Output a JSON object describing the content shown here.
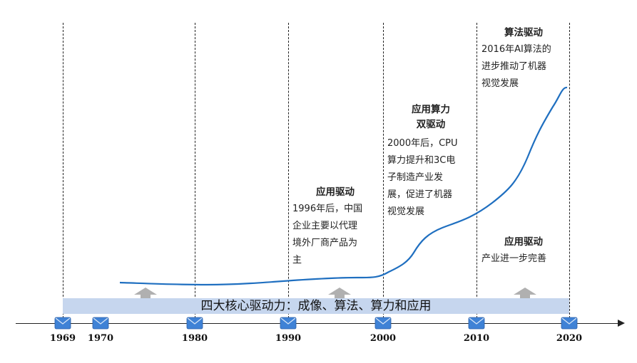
{
  "band_text": "四大核心驱动力：成像、算法、算力和应用",
  "years": [
    "1969",
    "1970",
    "1980",
    "1990",
    "2000",
    "2010",
    "2020"
  ],
  "annotations": {
    "app_1996": {
      "title": "应用驱动",
      "body": "1996年后，中国\n企业主要以代理\n境外厂商产品为\n主"
    },
    "app_compute_2000": {
      "title": "应用算力\n双驱动",
      "body": "2000年后，CPU\n算力提升和3C电\n子制造产业发\n展，促进了机器\n视觉发展"
    },
    "algo_2016": {
      "title": "算法驱动",
      "body": "2016年AI算法的\n进步推动了机器\n视觉发展"
    },
    "app_2010": {
      "title": "应用驱动",
      "body": "产业进一步完善"
    }
  },
  "colors": {
    "curve": "#1f6fc0",
    "band": "#c6d6ee",
    "marker": "#3f82d6",
    "arrow": "#b0b0b0"
  },
  "icons": [
    "envelope-marker-icon",
    "up-arrow-icon"
  ]
}
